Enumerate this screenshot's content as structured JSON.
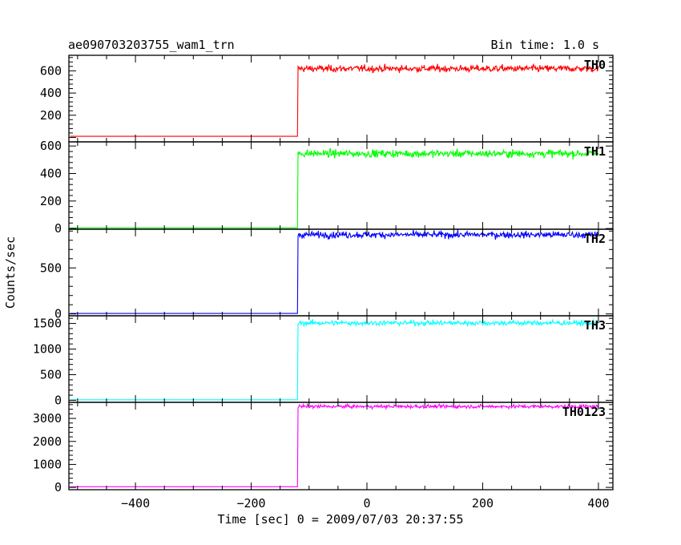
{
  "header": {
    "title": "ae090703203755_wam1_trn",
    "bin_time": "Bin time: 1.0 s"
  },
  "chart_data": {
    "type": "line",
    "xlabel": "Time [sec] 0 = 2009/07/03 20:37:55",
    "ylabel": "Counts/sec",
    "xlim": [
      -515,
      425
    ],
    "xticks": [
      -400,
      -200,
      0,
      200,
      400
    ],
    "xtick_labels": [
      "−400",
      "−200",
      "0",
      "200",
      "400"
    ],
    "panels": [
      {
        "name": "TH0",
        "color": "#ff0000",
        "ylim": [
          -40,
          740
        ],
        "yticks": [
          200,
          400,
          600
        ],
        "baseline": 10,
        "step_x": -120,
        "level": 620,
        "noise": 28
      },
      {
        "name": "TH1",
        "color": "#00ff00",
        "ylim": [
          -5,
          630
        ],
        "yticks": [
          0,
          200,
          400,
          600
        ],
        "baseline": 5,
        "step_x": -120,
        "level": 545,
        "noise": 25
      },
      {
        "name": "TH2",
        "color": "#0000ff",
        "ylim": [
          -20,
          920
        ],
        "yticks": [
          0,
          500
        ],
        "baseline": 5,
        "step_x": -120,
        "level": 860,
        "noise": 32
      },
      {
        "name": "TH3",
        "color": "#00ffff",
        "ylim": [
          -40,
          1650
        ],
        "yticks": [
          0,
          500,
          1000,
          1500
        ],
        "baseline": 10,
        "step_x": -120,
        "level": 1510,
        "noise": 45
      },
      {
        "name": "TH0123",
        "color": "#ff00ff",
        "ylim": [
          -100,
          3700
        ],
        "yticks": [
          0,
          1000,
          2000,
          3000
        ],
        "baseline": 30,
        "step_x": -120,
        "level": 3520,
        "noise": 70
      }
    ]
  }
}
